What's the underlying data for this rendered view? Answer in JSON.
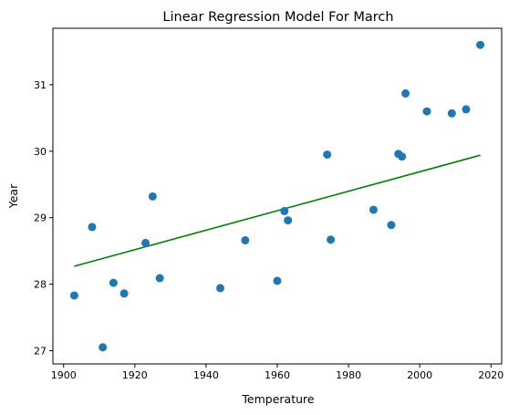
{
  "chart_data": {
    "type": "scatter",
    "title": "Linear Regression Model For March",
    "xlabel": "Temperature",
    "ylabel": "Year",
    "xlim": [
      1897,
      2023
    ],
    "ylim": [
      26.8,
      31.85
    ],
    "xticks": [
      1900,
      1920,
      1940,
      1960,
      1980,
      2000,
      2020
    ],
    "yticks": [
      27,
      28,
      29,
      30,
      31
    ],
    "grid": false,
    "points": [
      {
        "x": 1903,
        "y": 27.83
      },
      {
        "x": 1908,
        "y": 28.86
      },
      {
        "x": 1911,
        "y": 27.05
      },
      {
        "x": 1914,
        "y": 28.02
      },
      {
        "x": 1917,
        "y": 27.86
      },
      {
        "x": 1923,
        "y": 28.62
      },
      {
        "x": 1925,
        "y": 29.32
      },
      {
        "x": 1927,
        "y": 28.09
      },
      {
        "x": 1944,
        "y": 27.94
      },
      {
        "x": 1951,
        "y": 28.66
      },
      {
        "x": 1960,
        "y": 28.05
      },
      {
        "x": 1962,
        "y": 29.1
      },
      {
        "x": 1963,
        "y": 28.96
      },
      {
        "x": 1974,
        "y": 29.95
      },
      {
        "x": 1975,
        "y": 28.67
      },
      {
        "x": 1987,
        "y": 29.12
      },
      {
        "x": 1992,
        "y": 28.89
      },
      {
        "x": 1994,
        "y": 29.96
      },
      {
        "x": 1995,
        "y": 29.92
      },
      {
        "x": 1996,
        "y": 30.87
      },
      {
        "x": 2002,
        "y": 30.6
      },
      {
        "x": 2009,
        "y": 30.57
      },
      {
        "x": 2013,
        "y": 30.63
      },
      {
        "x": 2017,
        "y": 31.6
      }
    ],
    "regression_line": {
      "x": [
        1903,
        2017
      ],
      "y": [
        28.27,
        29.94
      ]
    },
    "colors": {
      "points": "#1f77b4",
      "line": "#008000"
    }
  }
}
